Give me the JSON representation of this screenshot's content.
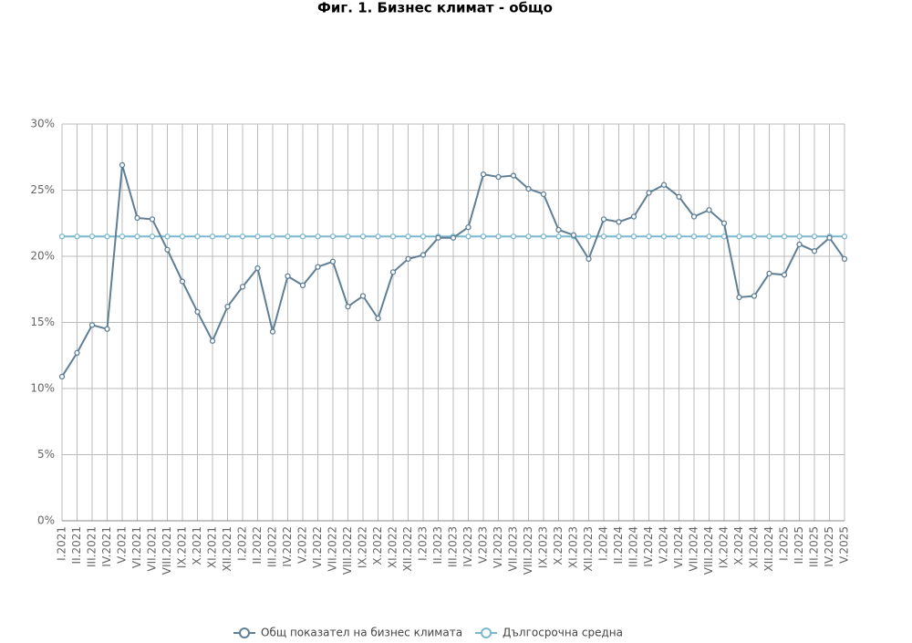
{
  "chart_data": {
    "type": "line",
    "title": "Фиг. 1. Бизнес климат - общо",
    "categories": [
      "I.2021",
      "II.2021",
      "III.2021",
      "IV.2021",
      "V.2021",
      "VI.2021",
      "VII.2021",
      "VIII.2021",
      "IX.2021",
      "X.2021",
      "XI.2021",
      "XII.2021",
      "I.2022",
      "II.2022",
      "III.2022",
      "IV.2022",
      "V.2022",
      "VI.2022",
      "VII.2022",
      "VIII.2022",
      "IX.2022",
      "X.2022",
      "XI.2022",
      "XII.2022",
      "I.2023",
      "II.2023",
      "III.2023",
      "IV.2023",
      "V.2023",
      "VI.2023",
      "VII.2023",
      "VIII.2023",
      "IX.2023",
      "X.2023",
      "XI.2023",
      "XII.2023",
      "I.2024",
      "II.2024",
      "III.2024",
      "IV.2024",
      "V.2024",
      "VI.2024",
      "VII.2024",
      "VIII.2024",
      "IX.2024",
      "X.2024",
      "XI.2024",
      "XII.2024",
      "I.2025",
      "II.2025",
      "III.2025",
      "IV.2025",
      "V.2025"
    ],
    "series": [
      {
        "name": "Общ показател на бизнес климата",
        "color": "#5f7f96",
        "values": [
          10.9,
          12.7,
          14.8,
          14.5,
          26.9,
          22.9,
          22.8,
          20.5,
          18.1,
          15.8,
          13.6,
          16.2,
          17.7,
          19.1,
          14.3,
          18.5,
          17.8,
          19.2,
          19.6,
          16.2,
          17.0,
          15.3,
          18.8,
          19.8,
          20.1,
          21.4,
          21.4,
          22.2,
          26.2,
          26.0,
          26.1,
          25.1,
          24.7,
          22.0,
          21.6,
          19.8,
          22.8,
          22.6,
          23.0,
          24.8,
          25.4,
          24.5,
          23.0,
          23.5,
          22.5,
          16.9,
          17.0,
          18.7,
          18.6,
          20.9,
          20.4,
          21.4,
          19.8
        ]
      },
      {
        "name": "Дългосрочна средна",
        "color": "#7ab8d0",
        "values": [
          21.5,
          21.5,
          21.5,
          21.5,
          21.5,
          21.5,
          21.5,
          21.5,
          21.5,
          21.5,
          21.5,
          21.5,
          21.5,
          21.5,
          21.5,
          21.5,
          21.5,
          21.5,
          21.5,
          21.5,
          21.5,
          21.5,
          21.5,
          21.5,
          21.5,
          21.5,
          21.5,
          21.5,
          21.5,
          21.5,
          21.5,
          21.5,
          21.5,
          21.5,
          21.5,
          21.5,
          21.5,
          21.5,
          21.5,
          21.5,
          21.5,
          21.5,
          21.5,
          21.5,
          21.5,
          21.5,
          21.5,
          21.5,
          21.5,
          21.5,
          21.5,
          21.5,
          21.5
        ]
      }
    ],
    "ylim": [
      0,
      30
    ],
    "yticks": [
      {
        "value": 0,
        "label": "0%"
      },
      {
        "value": 5,
        "label": "5%"
      },
      {
        "value": 10,
        "label": "10%"
      },
      {
        "value": 15,
        "label": "15%"
      },
      {
        "value": 20,
        "label": "20%"
      },
      {
        "value": 25,
        "label": "25%"
      },
      {
        "value": 30,
        "label": "30%"
      }
    ],
    "grid": true,
    "legend": "bottom"
  }
}
